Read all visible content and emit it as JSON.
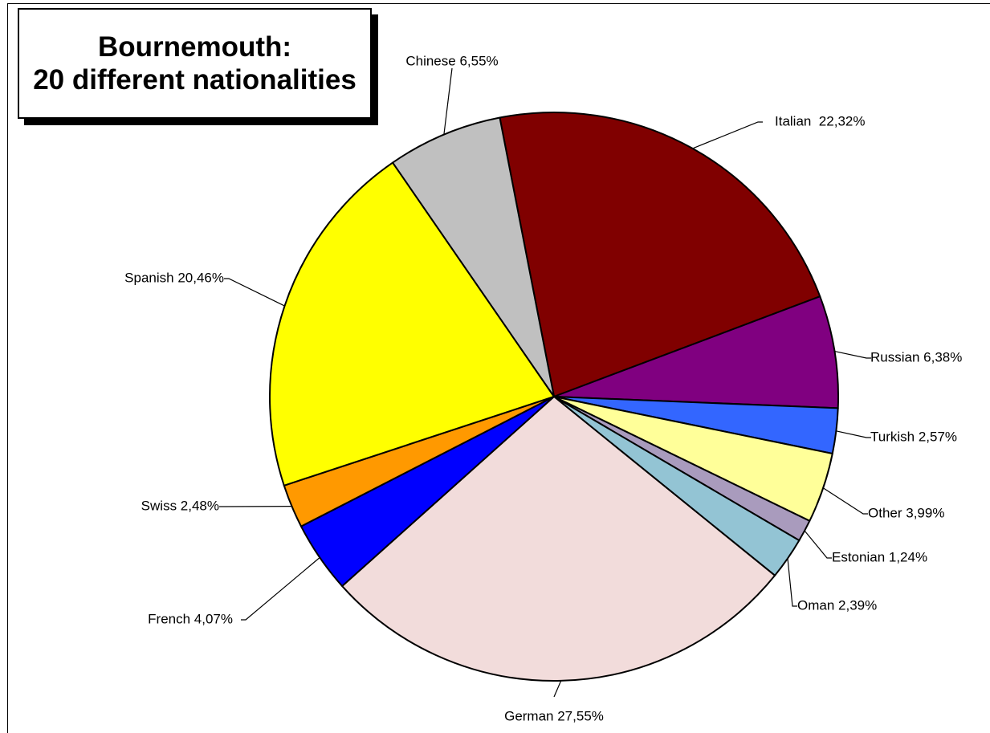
{
  "title": {
    "line1": "Bournemouth:",
    "line2": "20 different nationalities"
  },
  "chart_data": {
    "type": "pie",
    "title": "Bournemouth: 20 different nationalities",
    "start_angle_deg": -11,
    "direction": "clockwise",
    "slices": [
      {
        "name": "Italian",
        "label": "Italian  22,32%",
        "value": 22.32,
        "color": "#800000"
      },
      {
        "name": "Russian",
        "label": "Russian 6,38%",
        "value": 6.38,
        "color": "#800080"
      },
      {
        "name": "Turkish",
        "label": "Turkish 2,57%",
        "value": 2.57,
        "color": "#3366ff"
      },
      {
        "name": "Other",
        "label": "Other 3,99%",
        "value": 3.99,
        "color": "#ffff99"
      },
      {
        "name": "Estonian",
        "label": "Estonian 1,24%",
        "value": 1.24,
        "color": "#a99bbd"
      },
      {
        "name": "Oman",
        "label": "Oman 2,39%",
        "value": 2.39,
        "color": "#93c4d4"
      },
      {
        "name": "German",
        "label": "German 27,55%",
        "value": 27.55,
        "color": "#f2dcdb"
      },
      {
        "name": "French",
        "label": "French 4,07%",
        "value": 4.07,
        "color": "#0000ff"
      },
      {
        "name": "Swiss",
        "label": "Swiss 2,48%",
        "value": 2.48,
        "color": "#ff9900"
      },
      {
        "name": "Spanish",
        "label": "Spanish 20,46%",
        "value": 20.46,
        "color": "#ffff00"
      },
      {
        "name": "Chinese",
        "label": "Chinese 6,55%",
        "value": 6.55,
        "color": "#c0c0c0"
      }
    ]
  }
}
